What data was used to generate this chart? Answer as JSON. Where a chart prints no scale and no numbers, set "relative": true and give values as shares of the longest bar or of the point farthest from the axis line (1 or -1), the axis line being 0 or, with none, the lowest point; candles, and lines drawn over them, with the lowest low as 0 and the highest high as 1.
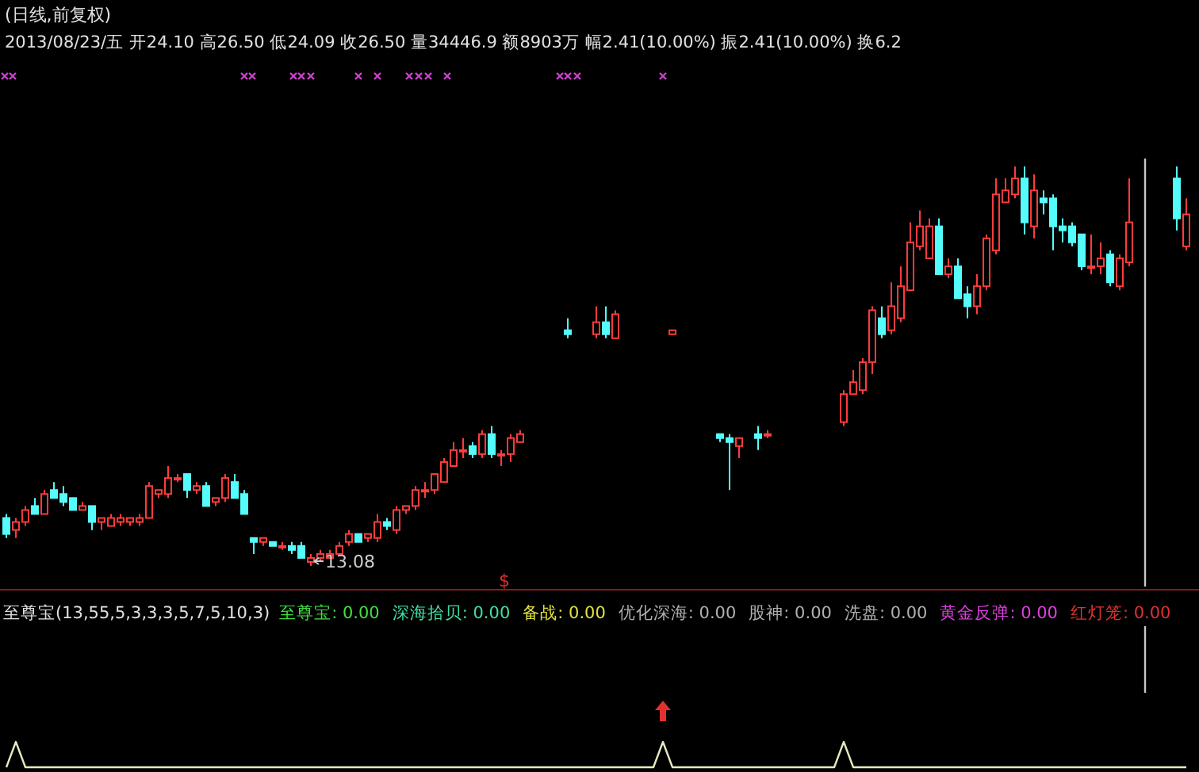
{
  "chart_data": [
    {
      "type": "candlestick",
      "title": "(日线,前复权)",
      "subtitle": "2013/08/23/五 开24.10 高26.50 低24.09 收26.50 量34446.9 额8903万 幅2.41(10.00%) 振2.41(10.00%) 换6.2",
      "relative": true,
      "categories": [
        null,
        null,
        null,
        null,
        null,
        null,
        null,
        null,
        null,
        null,
        null,
        null,
        null,
        null,
        null,
        null,
        null,
        null,
        null,
        null,
        null,
        null,
        null,
        null,
        null,
        null,
        null,
        null,
        null,
        null,
        null,
        null,
        null,
        null,
        null,
        null,
        null,
        null,
        null,
        null,
        null,
        null,
        null,
        null,
        null,
        null,
        null,
        null,
        null,
        null,
        null,
        null,
        null,
        null,
        null,
        null,
        null,
        null,
        null,
        null,
        null,
        null,
        null,
        null,
        null,
        null,
        null,
        null,
        null,
        null,
        null,
        null,
        null,
        null,
        null,
        null,
        null,
        null,
        null,
        null,
        null,
        null,
        null,
        null,
        null,
        null,
        null,
        null,
        null,
        null,
        null,
        null,
        null,
        null,
        null,
        null,
        null,
        null,
        null,
        null,
        null,
        null,
        null,
        null,
        null,
        null,
        null,
        null,
        null,
        null,
        null,
        null,
        null,
        null,
        null,
        null,
        null,
        null,
        null,
        null,
        null,
        null,
        null,
        null,
        null
      ],
      "ohlc": [
        [
          0.12,
          0.13,
          0.07,
          0.08
        ],
        [
          0.09,
          0.12,
          0.07,
          0.11
        ],
        [
          0.11,
          0.15,
          0.1,
          0.14
        ],
        [
          0.15,
          0.17,
          0.13,
          0.13
        ],
        [
          0.13,
          0.19,
          0.13,
          0.18
        ],
        [
          0.19,
          0.21,
          0.17,
          0.17
        ],
        [
          0.18,
          0.2,
          0.15,
          0.16
        ],
        [
          0.17,
          0.17,
          0.14,
          0.14
        ],
        [
          0.14,
          0.16,
          0.14,
          0.15
        ],
        [
          0.15,
          0.15,
          0.09,
          0.11
        ],
        [
          0.11,
          0.12,
          0.09,
          0.12
        ],
        [
          0.1,
          0.13,
          0.1,
          0.12
        ],
        [
          0.11,
          0.13,
          0.1,
          0.12
        ],
        [
          0.11,
          0.12,
          0.1,
          0.12
        ],
        [
          0.11,
          0.13,
          0.1,
          0.12
        ],
        [
          0.12,
          0.21,
          0.12,
          0.2
        ],
        [
          0.18,
          0.19,
          0.17,
          0.19
        ],
        [
          0.18,
          0.25,
          0.17,
          0.22
        ],
        [
          0.22,
          0.23,
          0.21,
          0.22
        ],
        [
          0.23,
          0.23,
          0.17,
          0.19
        ],
        [
          0.19,
          0.21,
          0.18,
          0.2
        ],
        [
          0.2,
          0.21,
          0.15,
          0.15
        ],
        [
          0.16,
          0.17,
          0.15,
          0.17
        ],
        [
          0.17,
          0.23,
          0.16,
          0.22
        ],
        [
          0.21,
          0.23,
          0.17,
          0.17
        ],
        [
          0.18,
          0.19,
          0.13,
          0.13
        ],
        [
          0.07,
          0.07,
          0.03,
          0.06
        ],
        [
          0.06,
          0.07,
          0.05,
          0.07
        ],
        [
          0.06,
          0.06,
          0.05,
          0.05
        ],
        [
          0.05,
          0.06,
          0.04,
          0.05
        ],
        [
          0.05,
          0.06,
          0.03,
          0.04
        ],
        [
          0.05,
          0.06,
          0.02,
          0.02
        ],
        [
          0.01,
          0.03,
          0,
          0.02
        ],
        [
          0.02,
          0.04,
          0.01,
          0.03
        ],
        [
          0.02,
          0.04,
          0.02,
          0.03
        ],
        [
          0.03,
          0.06,
          0.03,
          0.05
        ],
        [
          0.06,
          0.09,
          0.05,
          0.08
        ],
        [
          0.08,
          0.08,
          0.06,
          0.06
        ],
        [
          0.07,
          0.08,
          0.06,
          0.08
        ],
        [
          0.07,
          0.13,
          0.06,
          0.11
        ],
        [
          0.11,
          0.12,
          0.09,
          0.1
        ],
        [
          0.09,
          0.15,
          0.08,
          0.14
        ],
        [
          0.14,
          0.15,
          0.13,
          0.15
        ],
        [
          0.15,
          0.2,
          0.14,
          0.19
        ],
        [
          0.19,
          0.21,
          0.17,
          0.19
        ],
        [
          0.19,
          0.23,
          0.18,
          0.23
        ],
        [
          0.21,
          0.27,
          0.21,
          0.26
        ],
        [
          0.25,
          0.31,
          0.25,
          0.29
        ],
        [
          0.29,
          0.32,
          0.27,
          0.29
        ],
        [
          0.3,
          0.31,
          0.27,
          0.28
        ],
        [
          0.28,
          0.34,
          0.27,
          0.33
        ],
        [
          0.33,
          0.35,
          0.27,
          0.28
        ],
        [
          0.28,
          0.29,
          0.25,
          0.28
        ],
        [
          0.28,
          0.33,
          0.26,
          0.32
        ],
        [
          0.31,
          0.34,
          0.31,
          0.33
        ],
        null,
        null,
        null,
        null,
        [
          0.59,
          0.62,
          0.57,
          0.58
        ],
        null,
        null,
        [
          0.58,
          0.65,
          0.57,
          0.61
        ],
        [
          0.61,
          0.65,
          0.57,
          0.58
        ],
        [
          0.57,
          0.64,
          0.57,
          0.63
        ],
        null,
        null,
        null,
        null,
        null,
        [
          0.58,
          0.59,
          0.58,
          0.59
        ],
        null,
        null,
        null,
        null,
        [
          0.33,
          0.33,
          0.31,
          0.32
        ],
        [
          0.32,
          0.33,
          0.19,
          0.31
        ],
        [
          0.3,
          0.32,
          0.27,
          0.32
        ],
        null,
        [
          0.33,
          0.35,
          0.29,
          0.32
        ],
        [
          0.33,
          0.34,
          0.32,
          0.33
        ],
        null,
        null,
        null,
        null,
        null,
        null,
        null,
        [
          0.36,
          0.44,
          0.35,
          0.43
        ],
        [
          0.43,
          0.49,
          0.43,
          0.46
        ],
        [
          0.44,
          0.52,
          0.43,
          0.51
        ],
        [
          0.51,
          0.65,
          0.48,
          0.64
        ],
        [
          0.62,
          0.65,
          0.57,
          0.58
        ],
        [
          0.59,
          0.71,
          0.58,
          0.65
        ],
        [
          0.62,
          0.75,
          0.61,
          0.7
        ],
        [
          0.69,
          0.86,
          0.69,
          0.81
        ],
        [
          0.8,
          0.89,
          0.79,
          0.85
        ],
        [
          0.77,
          0.87,
          0.77,
          0.85
        ],
        [
          0.85,
          0.87,
          0.73,
          0.73
        ],
        [
          0.73,
          0.77,
          0.72,
          0.75
        ],
        [
          0.75,
          0.77,
          0.67,
          0.67
        ],
        [
          0.68,
          0.7,
          0.62,
          0.65
        ],
        [
          0.65,
          0.73,
          0.63,
          0.7
        ],
        [
          0.7,
          0.83,
          0.69,
          0.82
        ],
        [
          0.79,
          0.97,
          0.78,
          0.93
        ],
        [
          0.91,
          0.97,
          0.91,
          0.94
        ],
        [
          0.93,
          1,
          0.92,
          0.97
        ],
        [
          0.97,
          1,
          0.83,
          0.86
        ],
        [
          0.85,
          0.98,
          0.82,
          0.94
        ],
        [
          0.92,
          0.94,
          0.88,
          0.91
        ],
        [
          0.92,
          0.93,
          0.79,
          0.85
        ],
        [
          0.85,
          0.87,
          0.81,
          0.84
        ],
        [
          0.85,
          0.86,
          0.8,
          0.81
        ],
        [
          0.83,
          0.83,
          0.74,
          0.75
        ],
        [
          0.75,
          0.83,
          0.73,
          0.75
        ],
        [
          0.75,
          0.81,
          0.73,
          0.77
        ],
        [
          0.78,
          0.79,
          0.7,
          0.71
        ],
        [
          0.7,
          0.78,
          0.69,
          0.77
        ],
        [
          0.76,
          0.97,
          0.75,
          0.86
        ],
        null,
        null,
        null,
        null,
        [
          0.97,
          1,
          0.84,
          0.87
        ],
        [
          0.8,
          0.92,
          0.79,
          0.88
        ]
      ],
      "annotations": [
        "13.08",
        "$"
      ]
    },
    {
      "type": "line",
      "relative": true,
      "title": "至尊宝(13,55,5,3,3,3,5,7,5,10,3)",
      "annotations": [
        "至尊宝: 0.00",
        "深海拾贝: 0.00",
        "备战: 0.00",
        "优化深海: 0.00",
        "股神: 0.00",
        "洗盘: 0.00",
        "黄金反弹: 0.00",
        "红灯笼: 0.00"
      ],
      "categories": [
        null,
        null,
        null,
        null,
        null,
        null,
        null,
        null,
        null,
        null,
        null,
        null,
        null,
        null,
        null,
        null,
        null,
        null,
        null,
        null,
        null,
        null,
        null,
        null,
        null,
        null,
        null,
        null,
        null,
        null,
        null,
        null,
        null,
        null,
        null,
        null,
        null,
        null,
        null,
        null,
        null,
        null,
        null,
        null,
        null,
        null,
        null,
        null,
        null,
        null,
        null,
        null,
        null,
        null,
        null,
        null,
        null,
        null,
        null,
        null,
        null,
        null,
        null,
        null,
        null,
        null,
        null,
        null,
        null,
        null,
        null,
        null,
        null,
        null,
        null,
        null,
        null,
        null,
        null,
        null,
        null,
        null,
        null,
        null,
        null,
        null,
        null,
        null,
        null,
        null,
        null,
        null,
        null,
        null,
        null,
        null,
        null,
        null,
        null,
        null,
        null,
        null,
        null,
        null,
        null,
        null,
        null,
        null,
        null,
        null,
        null,
        null,
        null,
        null,
        null,
        null,
        null,
        null,
        null,
        null,
        null,
        null,
        null,
        null,
        null
      ],
      "series": [
        {
          "color": "#e8e8c0",
          "values": [
            0,
            1,
            0,
            0,
            0,
            0,
            0,
            0,
            0,
            0,
            0,
            0,
            0,
            0,
            0,
            0,
            0,
            0,
            0,
            0,
            0,
            0,
            0,
            0,
            0,
            0,
            0,
            0,
            0,
            0,
            0,
            0,
            0,
            0,
            0,
            0,
            0,
            0,
            0,
            0,
            0,
            0,
            0,
            0,
            0,
            0,
            0,
            0,
            0,
            0,
            0,
            0,
            0,
            0,
            0,
            0,
            0,
            0,
            0,
            0,
            0,
            0,
            0,
            0,
            0,
            0,
            0,
            0,
            0,
            1,
            0,
            0,
            0,
            0,
            0,
            0,
            0,
            0,
            0,
            0,
            0,
            0,
            0,
            0,
            0,
            0,
            0,
            0,
            1,
            0,
            0,
            0,
            0,
            0,
            0,
            0,
            0,
            0,
            0,
            0,
            0,
            0,
            0,
            0,
            0,
            0,
            0,
            0,
            0,
            0,
            0,
            0,
            0,
            0,
            0,
            0,
            0,
            0,
            0,
            0,
            0,
            0,
            0,
            0,
            0
          ]
        }
      ]
    }
  ]
}
